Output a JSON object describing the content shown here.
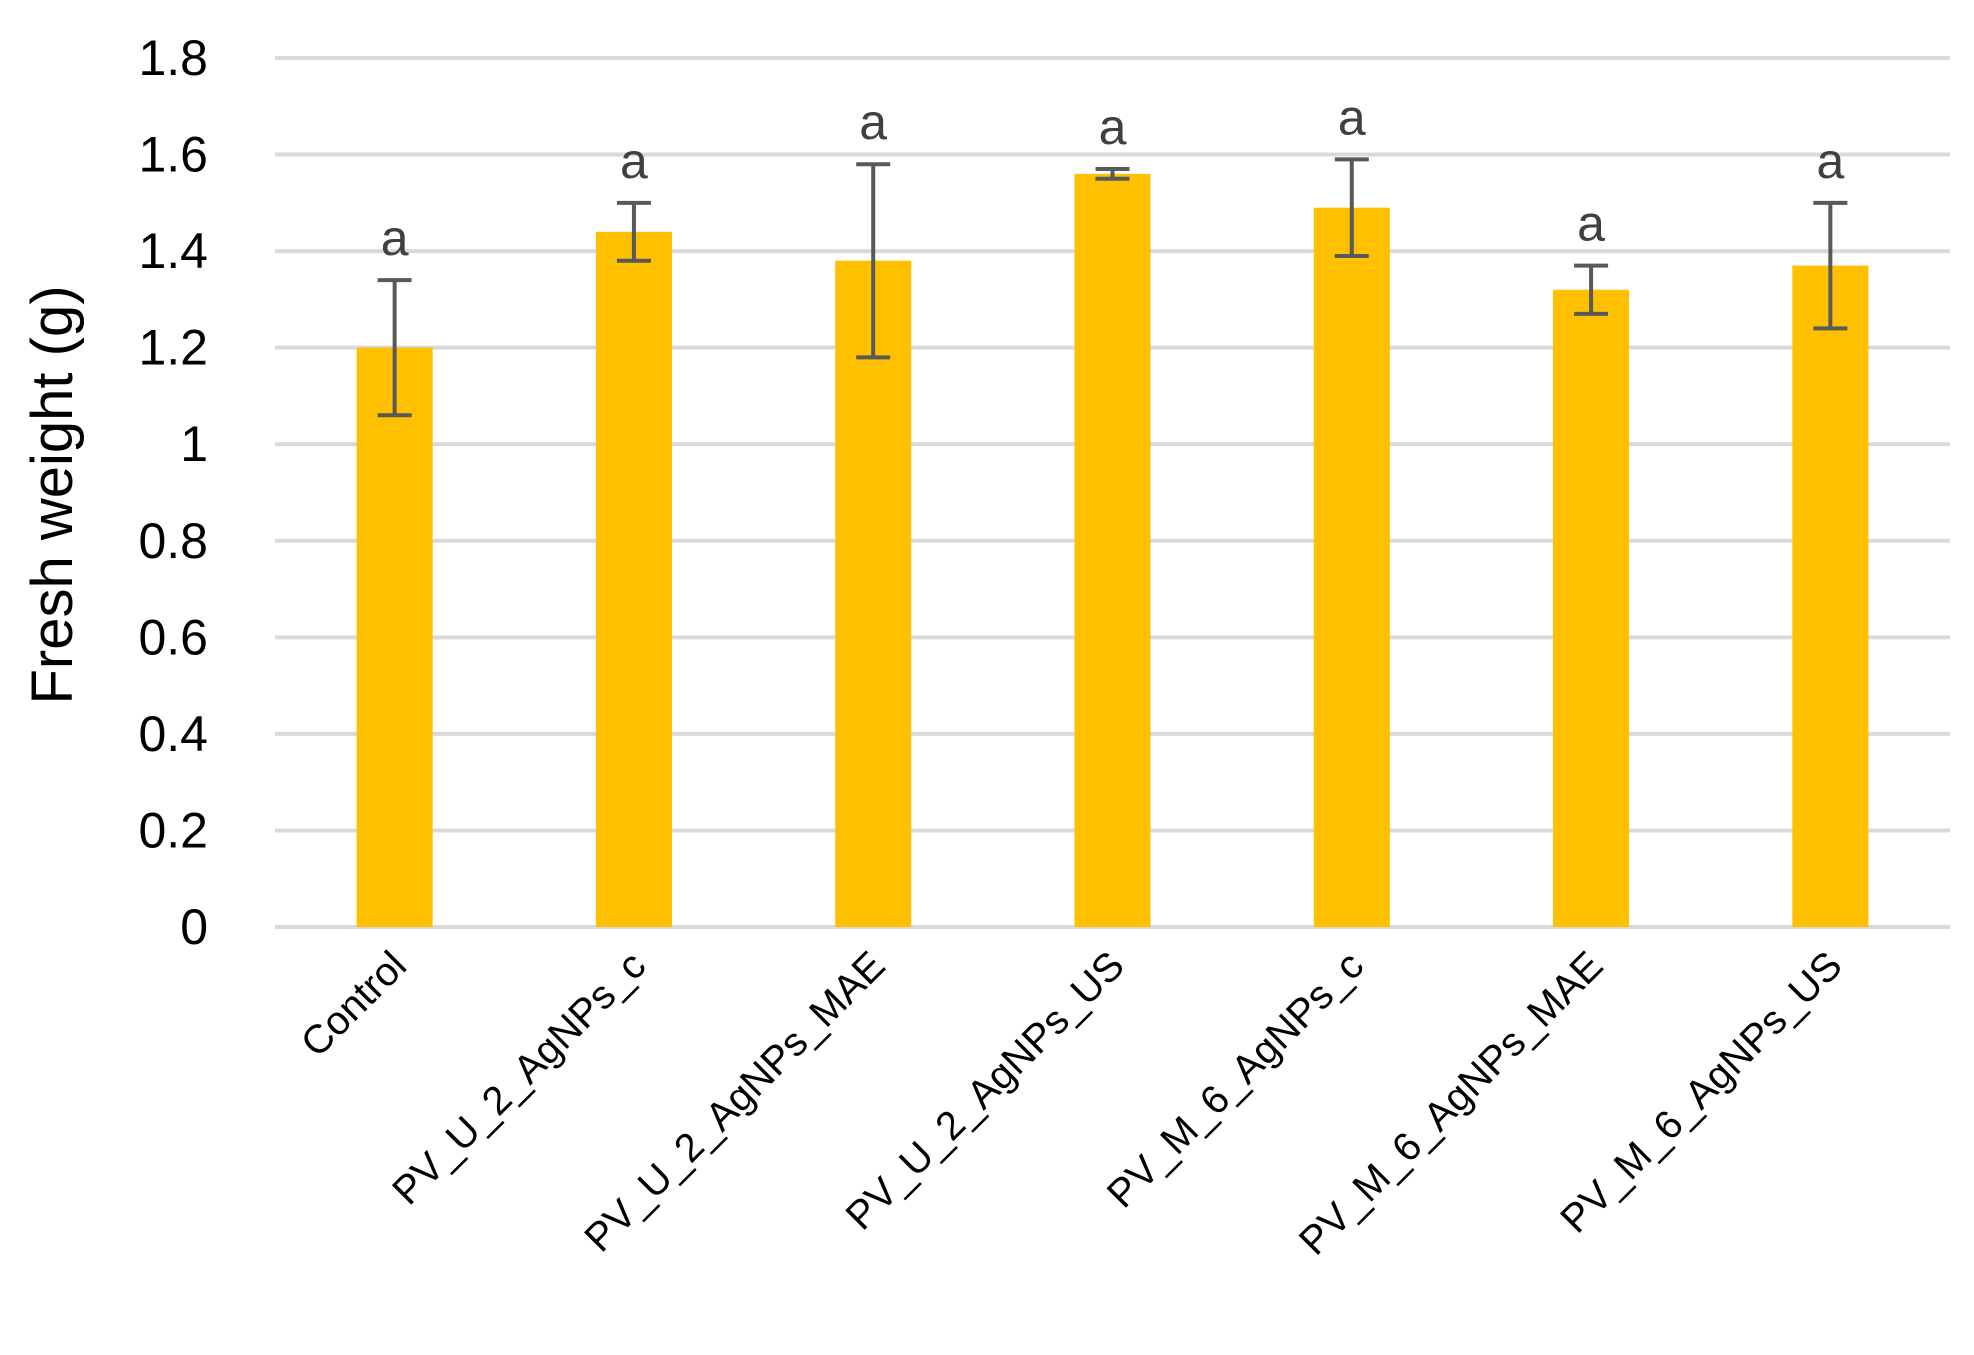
{
  "chart_data": {
    "type": "bar",
    "title": "",
    "xlabel": "",
    "ylabel": "Fresh weight (g)",
    "ylim": [
      0,
      1.8
    ],
    "yticks": [
      0,
      0.2,
      0.4,
      0.6,
      0.8,
      1,
      1.2,
      1.4,
      1.6,
      1.8
    ],
    "grid": true,
    "legend": "none",
    "bar_color": "#FFC000",
    "error_bar_color": "#595959",
    "categories": [
      "Control",
      "PV_U_2_AgNPs_c",
      "PV_U_2_AgNPs_MAE",
      "PV_U_2_AgNPs_US",
      "PV_M_6_AgNPs_c",
      "PV_M_6_AgNPs_MAE",
      "PV_M_6_AgNPs_US"
    ],
    "values": [
      1.2,
      1.44,
      1.38,
      1.56,
      1.49,
      1.32,
      1.37
    ],
    "errors": [
      0.14,
      0.06,
      0.2,
      0.01,
      0.1,
      0.05,
      0.13
    ],
    "significance_labels": [
      "a",
      "a",
      "a",
      "a",
      "a",
      "a",
      "a"
    ]
  }
}
